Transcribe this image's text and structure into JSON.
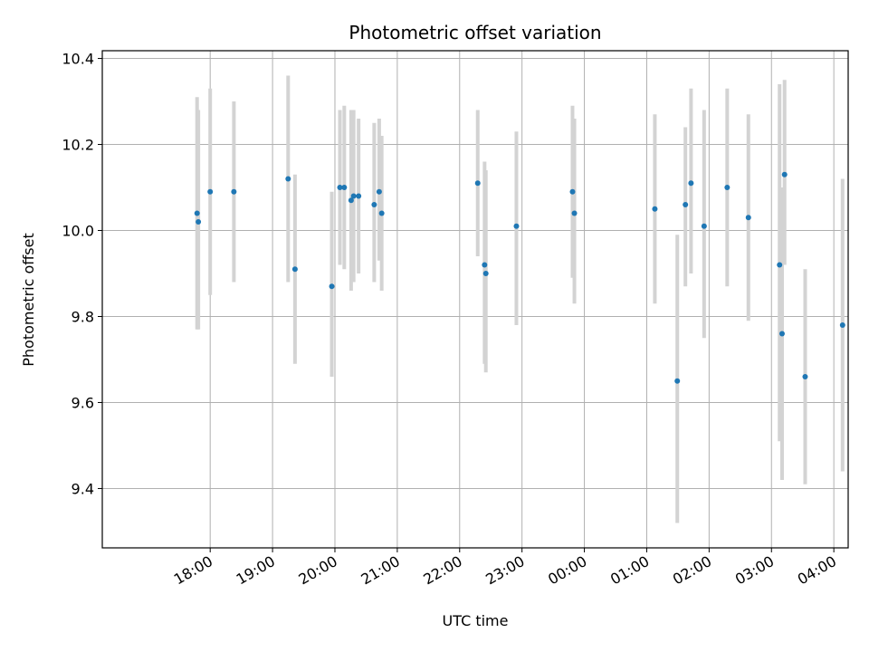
{
  "chart_data": {
    "type": "scatter",
    "title": "Photometric offset variation",
    "xlabel": "UTC time",
    "ylabel": "Photometric offset",
    "x_unit": "hours since 17:00 UTC",
    "xlim": [
      -0.73,
      11.23
    ],
    "ylim": [
      9.262,
      10.418
    ],
    "grid": true,
    "x_ticks": [
      {
        "value": 1,
        "label": "18:00"
      },
      {
        "value": 2,
        "label": "19:00"
      },
      {
        "value": 3,
        "label": "20:00"
      },
      {
        "value": 4,
        "label": "21:00"
      },
      {
        "value": 5,
        "label": "22:00"
      },
      {
        "value": 6,
        "label": "23:00"
      },
      {
        "value": 7,
        "label": "00:00"
      },
      {
        "value": 8,
        "label": "01:00"
      },
      {
        "value": 9,
        "label": "02:00"
      },
      {
        "value": 10,
        "label": "03:00"
      },
      {
        "value": 11,
        "label": "04:00"
      }
    ],
    "y_ticks": [
      {
        "value": 9.4,
        "label": "9.4"
      },
      {
        "value": 9.6,
        "label": "9.6"
      },
      {
        "value": 9.8,
        "label": "9.8"
      },
      {
        "value": 10.0,
        "label": "10.0"
      },
      {
        "value": 10.2,
        "label": "10.2"
      },
      {
        "value": 10.4,
        "label": "10.4"
      }
    ],
    "marker_color": "#1f77b4",
    "errorbar_color": "#d3d3d3",
    "points": [
      {
        "x": 0.79,
        "y": 10.04,
        "lo": 9.77,
        "hi": 10.31
      },
      {
        "x": 0.81,
        "y": 10.02,
        "lo": 9.77,
        "hi": 10.28
      },
      {
        "x": 1.0,
        "y": 10.09,
        "lo": 9.85,
        "hi": 10.33
      },
      {
        "x": 1.38,
        "y": 10.09,
        "lo": 9.88,
        "hi": 10.3
      },
      {
        "x": 2.25,
        "y": 10.12,
        "lo": 9.88,
        "hi": 10.36
      },
      {
        "x": 2.36,
        "y": 9.91,
        "lo": 9.69,
        "hi": 10.13
      },
      {
        "x": 2.95,
        "y": 9.87,
        "lo": 9.66,
        "hi": 10.09
      },
      {
        "x": 3.08,
        "y": 10.1,
        "lo": 9.92,
        "hi": 10.28
      },
      {
        "x": 3.15,
        "y": 10.1,
        "lo": 9.91,
        "hi": 10.29
      },
      {
        "x": 3.26,
        "y": 10.07,
        "lo": 9.86,
        "hi": 10.28
      },
      {
        "x": 3.3,
        "y": 10.08,
        "lo": 9.88,
        "hi": 10.28
      },
      {
        "x": 3.38,
        "y": 10.08,
        "lo": 9.9,
        "hi": 10.26
      },
      {
        "x": 3.63,
        "y": 10.06,
        "lo": 9.88,
        "hi": 10.25
      },
      {
        "x": 3.71,
        "y": 10.09,
        "lo": 9.93,
        "hi": 10.26
      },
      {
        "x": 3.75,
        "y": 10.04,
        "lo": 9.86,
        "hi": 10.22
      },
      {
        "x": 5.29,
        "y": 10.11,
        "lo": 9.94,
        "hi": 10.28
      },
      {
        "x": 5.4,
        "y": 9.92,
        "lo": 9.69,
        "hi": 10.16
      },
      {
        "x": 5.42,
        "y": 9.9,
        "lo": 9.67,
        "hi": 10.14
      },
      {
        "x": 5.91,
        "y": 10.01,
        "lo": 9.78,
        "hi": 10.23
      },
      {
        "x": 6.81,
        "y": 10.09,
        "lo": 9.89,
        "hi": 10.29
      },
      {
        "x": 6.84,
        "y": 10.04,
        "lo": 9.83,
        "hi": 10.26
      },
      {
        "x": 8.13,
        "y": 10.05,
        "lo": 9.83,
        "hi": 10.27
      },
      {
        "x": 8.49,
        "y": 9.65,
        "lo": 9.32,
        "hi": 9.99
      },
      {
        "x": 8.62,
        "y": 10.06,
        "lo": 9.87,
        "hi": 10.24
      },
      {
        "x": 8.71,
        "y": 10.11,
        "lo": 9.9,
        "hi": 10.33
      },
      {
        "x": 8.92,
        "y": 10.01,
        "lo": 9.75,
        "hi": 10.28
      },
      {
        "x": 9.29,
        "y": 10.1,
        "lo": 9.87,
        "hi": 10.33
      },
      {
        "x": 9.63,
        "y": 10.03,
        "lo": 9.79,
        "hi": 10.27
      },
      {
        "x": 10.13,
        "y": 9.92,
        "lo": 9.51,
        "hi": 10.34
      },
      {
        "x": 10.17,
        "y": 9.76,
        "lo": 9.42,
        "hi": 10.1
      },
      {
        "x": 10.21,
        "y": 10.13,
        "lo": 9.92,
        "hi": 10.35
      },
      {
        "x": 10.54,
        "y": 9.66,
        "lo": 9.41,
        "hi": 9.91
      },
      {
        "x": 11.14,
        "y": 9.78,
        "lo": 9.44,
        "hi": 10.12
      }
    ]
  }
}
